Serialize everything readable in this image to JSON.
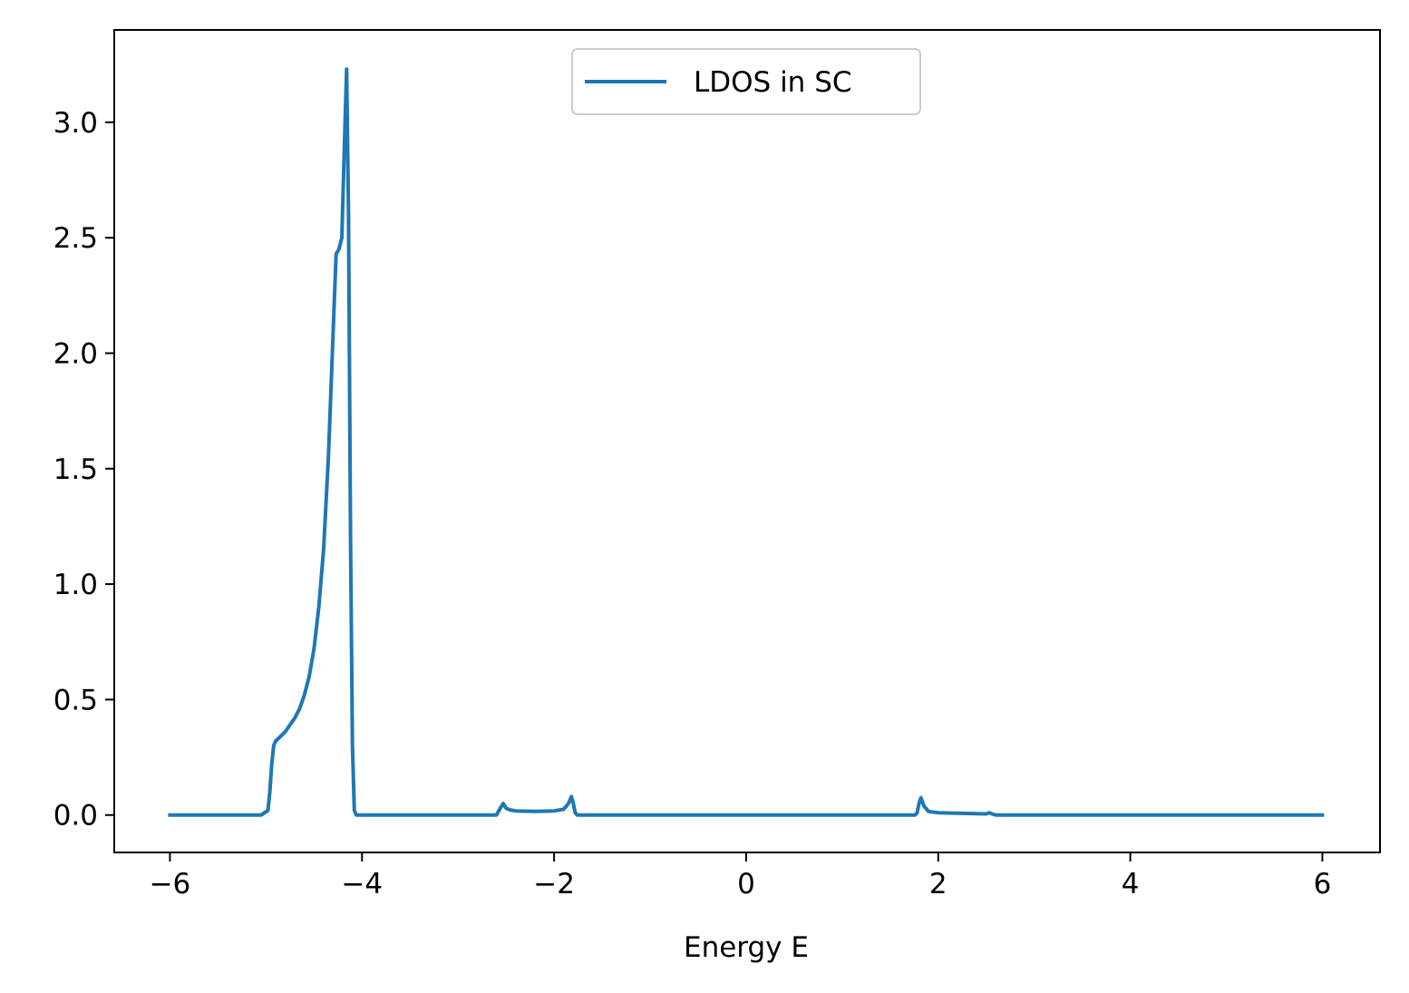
{
  "chart_data": {
    "type": "line",
    "title": "",
    "xlabel": "Energy E",
    "ylabel": "",
    "xlim": [
      -6.58,
      6.6
    ],
    "ylim": [
      -0.162,
      3.4
    ],
    "xticks": [
      -6,
      -4,
      -2,
      0,
      2,
      4,
      6
    ],
    "xtick_labels": [
      "−6",
      "−4",
      "−2",
      "0",
      "2",
      "4",
      "6"
    ],
    "yticks": [
      0.0,
      0.5,
      1.0,
      1.5,
      2.0,
      2.5,
      3.0
    ],
    "ytick_labels": [
      "0.0",
      "0.5",
      "1.0",
      "1.5",
      "2.0",
      "2.5",
      "3.0"
    ],
    "grid": false,
    "legend_position": "upper center",
    "series": [
      {
        "name": "LDOS in SC",
        "color": "#1f77b4",
        "x": [
          -6.0,
          -5.5,
          -5.05,
          -4.98,
          -4.96,
          -4.94,
          -4.92,
          -4.9,
          -4.85,
          -4.8,
          -4.75,
          -4.7,
          -4.65,
          -4.6,
          -4.55,
          -4.5,
          -4.45,
          -4.4,
          -4.35,
          -4.3,
          -4.27,
          -4.24,
          -4.21,
          -4.18,
          -4.16,
          -4.14,
          -4.12,
          -4.1,
          -4.08,
          -4.06,
          -4.04,
          -4.03,
          -4.02,
          -4.015,
          -4.01,
          -4.005,
          -4.0,
          -3.99,
          -3.985,
          -3.98,
          -3.97,
          -3.96,
          -3.95,
          -3.94,
          -3.93,
          -3.9,
          -3.7,
          -3.0,
          -2.6,
          -2.56,
          -2.53,
          -2.5,
          -2.46,
          -2.4,
          -2.2,
          -2.0,
          -1.9,
          -1.85,
          -1.82,
          -1.8,
          -1.78,
          -1.76,
          -1.5,
          -1.0,
          0.0,
          1.0,
          1.5,
          1.76,
          1.78,
          1.8,
          1.82,
          1.85,
          1.9,
          2.0,
          2.2,
          2.4,
          2.5,
          2.53,
          2.56,
          2.6,
          2.7,
          3.0,
          3.5,
          3.9,
          3.93,
          3.95,
          3.97,
          3.98,
          3.99,
          4.0,
          4.005,
          4.01,
          4.015,
          4.02,
          4.03,
          4.04,
          4.06,
          4.08,
          4.1,
          4.12,
          4.14,
          4.16,
          4.18,
          4.2,
          4.25,
          4.3,
          4.4,
          4.5,
          4.6,
          4.7,
          4.8,
          4.87,
          4.9,
          4.93,
          4.96,
          4.98,
          5.0,
          5.5,
          6.0
        ],
        "y": [
          0.0,
          0.0,
          0.0,
          0.02,
          0.1,
          0.22,
          0.3,
          0.32,
          0.34,
          0.36,
          0.39,
          0.42,
          0.46,
          0.52,
          0.6,
          0.72,
          0.9,
          1.15,
          1.55,
          2.1,
          2.43,
          2.45,
          2.5,
          2.95,
          3.23,
          2.6,
          1.2,
          0.3,
          0.02,
          0.0,
          0.0,
          0.0,
          0.0,
          0.0,
          0.0,
          0.0,
          0.0,
          0.0,
          0.0,
          0.0,
          0.0,
          0.0,
          0.0,
          0.0,
          0.0,
          0.0,
          0.0,
          0.0,
          0.0,
          0.03,
          0.05,
          0.03,
          0.022,
          0.018,
          0.016,
          0.018,
          0.025,
          0.05,
          0.08,
          0.05,
          0.01,
          0.0,
          0.0,
          0.0,
          0.0,
          0.0,
          0.0,
          0.0,
          0.01,
          0.05,
          0.075,
          0.04,
          0.015,
          0.01,
          0.008,
          0.006,
          0.005,
          0.01,
          0.005,
          0.0,
          0.0,
          0.0,
          0.0,
          0.0,
          0.0,
          0.0,
          0.0,
          0.0,
          0.0,
          0.0,
          0.0,
          0.0,
          0.0,
          0.0,
          0.0,
          0.0,
          0.0,
          0.0,
          0.0,
          0.0,
          0.0,
          0.0,
          0.0,
          0.0,
          0.0,
          0.0,
          0.0,
          0.0,
          0.0,
          0.0,
          0.0,
          0.0,
          0.0,
          0.0,
          0.0,
          0.0,
          0.0,
          0.0,
          0.0
        ]
      }
    ]
  }
}
